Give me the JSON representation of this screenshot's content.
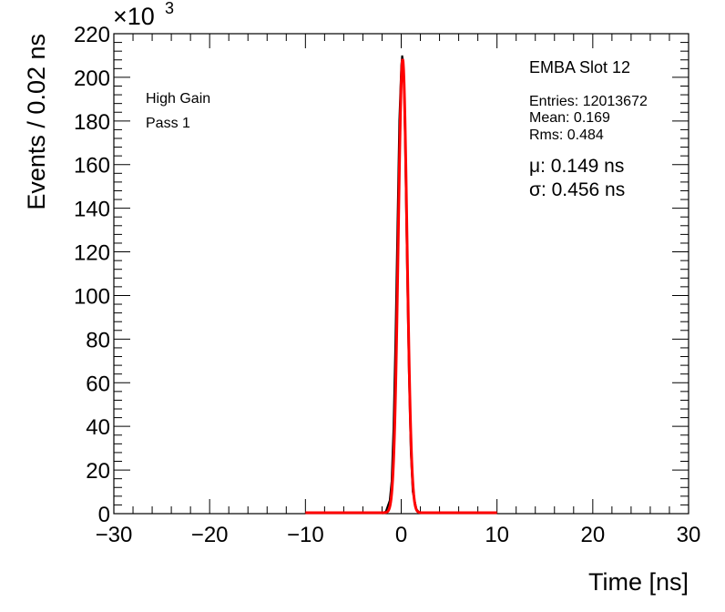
{
  "chart_data": {
    "type": "line",
    "xlabel": "Time [ns]",
    "ylabel": "Events / 0.02 ns",
    "y_multiplier": "×10",
    "y_multiplier_exponent": "3",
    "xlim": [
      -30,
      30
    ],
    "ylim": [
      0,
      220
    ],
    "x_ticks": [
      -30,
      -20,
      -10,
      0,
      10,
      20,
      30
    ],
    "x_tick_labels": [
      "−30",
      "−20",
      "−10",
      "0",
      "10",
      "20",
      "30"
    ],
    "y_ticks": [
      0,
      20,
      40,
      60,
      80,
      100,
      120,
      140,
      160,
      180,
      200,
      220
    ],
    "y_tick_labels": [
      "0",
      "20",
      "40",
      "60",
      "80",
      "100",
      "120",
      "140",
      "160",
      "180",
      "200",
      "220"
    ],
    "grid": false,
    "annotations": {
      "gain": "High Gain",
      "pass": "Pass 1"
    },
    "stats": {
      "title": "EMBA Slot 12",
      "entries": "Entries: 12013672",
      "mean": "Mean: 0.169",
      "rms": "Rms: 0.484",
      "mu": "μ: 0.149 ns",
      "sigma": "σ: 0.456 ns"
    },
    "series": [
      {
        "color": "#000000",
        "kind": "histogram",
        "x": [
          -2.0,
          -1.6,
          -1.2,
          -1.0,
          -0.8,
          -0.6,
          -0.4,
          -0.2,
          0.0,
          0.1,
          0.2,
          0.3,
          0.4,
          0.6,
          0.8,
          1.0,
          1.2,
          1.6,
          2.0
        ],
        "y": [
          0,
          1,
          6,
          15,
          40,
          80,
          130,
          180,
          205,
          210,
          207,
          195,
          170,
          115,
          65,
          28,
          10,
          2,
          0
        ]
      },
      {
        "color": "#ff0000",
        "kind": "fit",
        "mu": 0.149,
        "sigma": 0.456,
        "amplitude": 208,
        "x_range": [
          -10,
          10
        ]
      }
    ]
  }
}
